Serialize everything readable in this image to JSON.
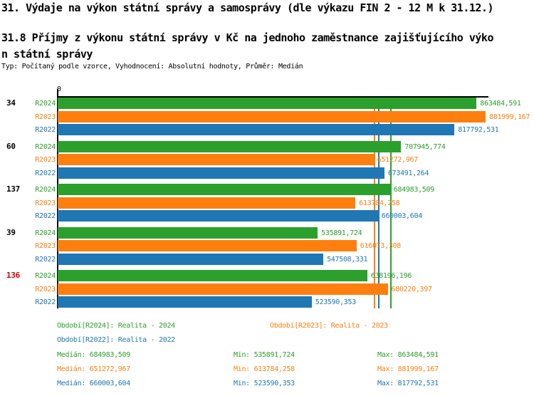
{
  "header": {
    "title1": "31. Výdaje na výkon státní správy a samosprávy (dle výkazu FIN 2 - 12 M k 31.12.)",
    "title2_line1": "31.8 Příjmy z výkonu státní správy v Kč na jednoho zaměstnance zajišťujícího výko",
    "title2_line2": "n státní správy",
    "subtitle": "Typ: Počítaný podle vzorce, Vyhodnocení: Absolutní hodnoty, Průměr: Medián"
  },
  "colors": {
    "r2024": "#2ca02c",
    "r2023": "#ff7f0e",
    "r2022": "#1f77b4",
    "highlight": "#cc0000",
    "axis": "#000000"
  },
  "chart_data": {
    "type": "bar",
    "orientation": "horizontal",
    "x_axis": {
      "zero_label": "0",
      "xlim_min": 0
    },
    "grid": false,
    "series_labels": [
      "R2024",
      "R2023",
      "R2022"
    ],
    "series_colors": [
      "#2ca02c",
      "#ff7f0e",
      "#1f77b4"
    ],
    "groups": [
      {
        "label": "34",
        "highlighted": false,
        "values": [
          863484.591,
          881999.167,
          817792.531
        ],
        "display_values": [
          "863484,591",
          "881999,167",
          "817792,531"
        ]
      },
      {
        "label": "60",
        "highlighted": false,
        "values": [
          707945.774,
          651272.967,
          673491.264
        ],
        "display_values": [
          "707945,774",
          "651272,967",
          "673491,264"
        ]
      },
      {
        "label": "137",
        "highlighted": false,
        "values": [
          684983.509,
          613784.258,
          660003.604
        ],
        "display_values": [
          "684983,509",
          "613784,258",
          "660003,604"
        ]
      },
      {
        "label": "39",
        "highlighted": false,
        "values": [
          535891.724,
          616073.308,
          547508.331
        ],
        "display_values": [
          "535891,724",
          "616073,308",
          "547508,331"
        ]
      },
      {
        "label": "136",
        "highlighted": true,
        "values": [
          638196.196,
          680220.397,
          523590.353
        ],
        "display_values": [
          "638196,196",
          "680220,397",
          "523590,353"
        ]
      }
    ],
    "median_lines": [
      {
        "series": "R2024",
        "value": 684983.509,
        "color": "#2ca02c"
      },
      {
        "series": "R2023",
        "value": 651272.967,
        "color": "#ff7f0e"
      },
      {
        "series": "R2022",
        "value": 660003.604,
        "color": "#1f77b4"
      }
    ]
  },
  "legend": {
    "items": [
      {
        "text": "Období[R2024]: Realita - 2024",
        "color": "#2ca02c"
      },
      {
        "text": "Období[R2023]: Realita - 2023",
        "color": "#ff7f0e"
      },
      {
        "text": "Období[R2022]: Realita - 2022",
        "color": "#1f77b4"
      }
    ]
  },
  "stats": {
    "rows": [
      {
        "median": "Medián: 684983,509",
        "min": "Min: 535891,724",
        "max": "Max: 863484,591",
        "color": "#2ca02c"
      },
      {
        "median": "Medián: 651272,967",
        "min": "Min: 613784,258",
        "max": "Max: 881999,167",
        "color": "#ff7f0e"
      },
      {
        "median": "Medián: 660003,604",
        "min": "Min: 523590,353",
        "max": "Max: 817792,531",
        "color": "#1f77b4"
      }
    ]
  }
}
